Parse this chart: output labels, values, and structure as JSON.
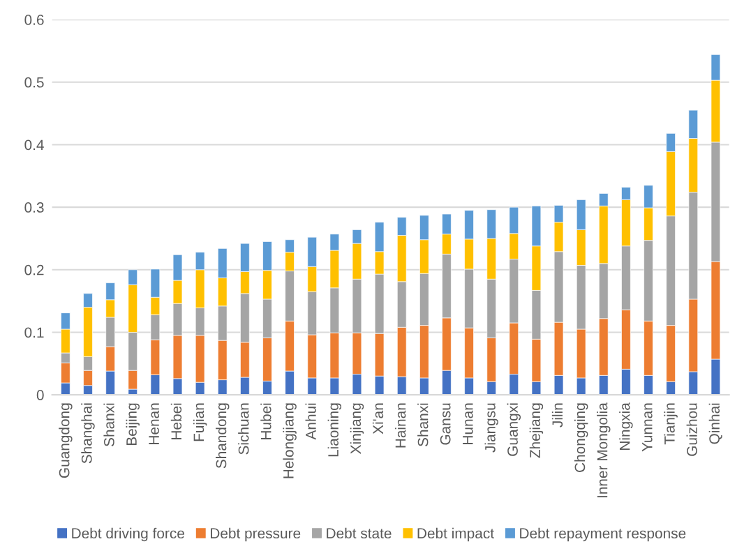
{
  "chart_data": {
    "type": "bar",
    "stacked": true,
    "categories": [
      "Guangdong",
      "Shanghai",
      "Shanxi",
      "Beijing",
      "Henan",
      "Hebei",
      "Fujian",
      "Shandong",
      "Sichuan",
      "Hubei",
      "Helongjiang",
      "Anhui",
      "Liaoning",
      "Xinjiang",
      "Xi'an",
      "Hainan",
      "Shanxi",
      "Gansu",
      "Hunan",
      "Jiangsu",
      "Guangxi",
      "Zhejiang",
      "Jilin",
      "Chongqing",
      "Inner Mongolia",
      "Ningxia",
      "Yunnan",
      "Tianjin",
      "Guizhou",
      "Qinhai"
    ],
    "series": [
      {
        "name": "Debt driving force",
        "color": "#4472c4",
        "values": [
          0.019,
          0.015,
          0.038,
          0.009,
          0.032,
          0.026,
          0.02,
          0.024,
          0.028,
          0.022,
          0.038,
          0.027,
          0.027,
          0.033,
          0.03,
          0.029,
          0.027,
          0.039,
          0.027,
          0.021,
          0.033,
          0.021,
          0.031,
          0.027,
          0.031,
          0.041,
          0.031,
          0.021,
          0.037,
          0.057
        ]
      },
      {
        "name": "Debt pressure",
        "color": "#ed7d31",
        "values": [
          0.032,
          0.024,
          0.039,
          0.03,
          0.056,
          0.069,
          0.075,
          0.063,
          0.056,
          0.069,
          0.08,
          0.069,
          0.072,
          0.066,
          0.068,
          0.079,
          0.084,
          0.084,
          0.08,
          0.07,
          0.082,
          0.068,
          0.085,
          0.078,
          0.091,
          0.095,
          0.087,
          0.09,
          0.116,
          0.156
        ]
      },
      {
        "name": "Debt state",
        "color": "#a5a5a5",
        "values": [
          0.016,
          0.022,
          0.047,
          0.061,
          0.04,
          0.051,
          0.044,
          0.055,
          0.078,
          0.062,
          0.08,
          0.069,
          0.072,
          0.086,
          0.095,
          0.073,
          0.083,
          0.102,
          0.094,
          0.094,
          0.102,
          0.078,
          0.113,
          0.102,
          0.088,
          0.102,
          0.129,
          0.175,
          0.171,
          0.191
        ]
      },
      {
        "name": "Debt impact",
        "color": "#ffc000",
        "values": [
          0.038,
          0.079,
          0.028,
          0.076,
          0.028,
          0.037,
          0.061,
          0.045,
          0.035,
          0.046,
          0.03,
          0.04,
          0.06,
          0.057,
          0.036,
          0.074,
          0.054,
          0.032,
          0.048,
          0.065,
          0.041,
          0.071,
          0.047,
          0.057,
          0.092,
          0.074,
          0.052,
          0.103,
          0.086,
          0.099
        ]
      },
      {
        "name": "Debt repayment response",
        "color": "#5b9bd5",
        "values": [
          0.026,
          0.022,
          0.027,
          0.024,
          0.045,
          0.041,
          0.028,
          0.047,
          0.045,
          0.046,
          0.02,
          0.047,
          0.026,
          0.022,
          0.047,
          0.029,
          0.039,
          0.032,
          0.046,
          0.046,
          0.042,
          0.064,
          0.027,
          0.048,
          0.02,
          0.02,
          0.036,
          0.029,
          0.045,
          0.041
        ]
      }
    ],
    "ylim": [
      0,
      0.6
    ],
    "yticks": [
      0,
      0.1,
      0.2,
      0.3,
      0.4,
      0.5,
      0.6
    ],
    "grid": "y",
    "legend": "bottom"
  }
}
